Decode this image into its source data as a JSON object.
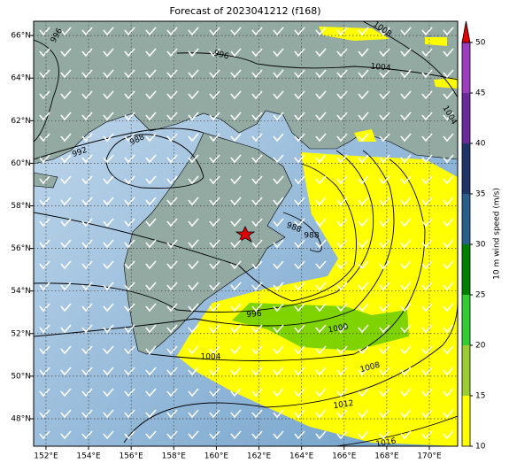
{
  "map": {
    "title": "Forecast of 2023041212 (f168)",
    "xlim": [
      151.42,
      171.33
    ],
    "ylim": [
      46.71,
      66.67
    ],
    "xticks": [
      {
        "value": 152,
        "label": "152°E"
      },
      {
        "value": 154,
        "label": "154°E"
      },
      {
        "value": 156,
        "label": "156°E"
      },
      {
        "value": 158,
        "label": "158°E"
      },
      {
        "value": 160,
        "label": "160°E"
      },
      {
        "value": 162,
        "label": "162°E"
      },
      {
        "value": 164,
        "label": "164°E"
      },
      {
        "value": 166,
        "label": "166°E"
      },
      {
        "value": 168,
        "label": "168°E"
      },
      {
        "value": 170,
        "label": "170°E"
      }
    ],
    "yticks": [
      {
        "value": 48,
        "label": "48°N"
      },
      {
        "value": 50,
        "label": "50°N"
      },
      {
        "value": 52,
        "label": "52°N"
      },
      {
        "value": 54,
        "label": "54°N"
      },
      {
        "value": 56,
        "label": "56°N"
      },
      {
        "value": 58,
        "label": "58°N"
      },
      {
        "value": 60,
        "label": "60°N"
      },
      {
        "value": 62,
        "label": "62°N"
      },
      {
        "value": 64,
        "label": "64°N"
      },
      {
        "value": 66,
        "label": "66°N"
      }
    ],
    "colorbar": {
      "label": "10 m wind speed (m/s)",
      "clim": [
        10,
        50
      ],
      "ticks": [
        10,
        15,
        20,
        25,
        30,
        35,
        40,
        45,
        50
      ],
      "colors": [
        "#ffff00",
        "#9acd32",
        "#32cd32",
        "#008000",
        "#2a5f8a",
        "#1f3568",
        "#6a2a9a",
        "#9b3fc0"
      ],
      "extend_color": "#e00000"
    },
    "contour_labels": [
      "996",
      "996",
      "1004",
      "1004",
      "992",
      "988",
      "988",
      "988",
      "996",
      "1000",
      "1004",
      "1008",
      "1012",
      "1016",
      "1008"
    ]
  }
}
